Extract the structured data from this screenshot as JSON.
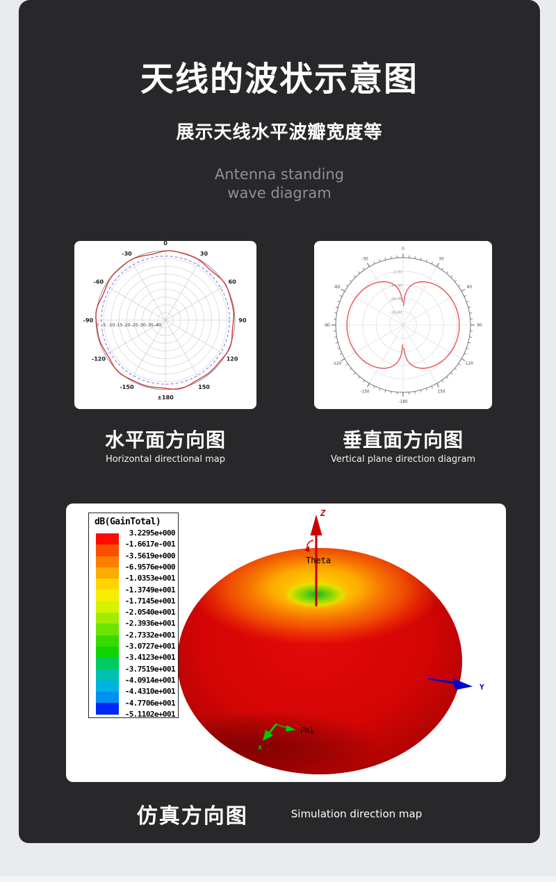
{
  "colors": {
    "page_bg": "#e9ebee",
    "card_bg": "#28282a",
    "panel_bg": "#ffffff",
    "title_text": "#ffffff",
    "muted_en_text": "#8f9093"
  },
  "header": {
    "title": "天线的波状示意图",
    "subtitle": "展示天线水平波瓣宽度等",
    "en_line1": "Antenna standing",
    "en_line2": "wave diagram"
  },
  "captions": {
    "horizontal_zh": "水平面方向图",
    "horizontal_en": "Horizontal directional map",
    "vertical_zh": "垂直面方向图",
    "vertical_en": "Vertical plane direction diagram",
    "simulation_zh": "仿真方向图",
    "simulation_en": "Simulation direction map"
  },
  "chart_data": [
    {
      "id": "horizontal-plane-pattern",
      "type": "polar",
      "description": "Horizontal plane radiation pattern: red measured gain curve nearly omnidirectional close to 0 dB at outer edge; blue dashed reference circle at about -3.5 dB",
      "angle_ticks_deg": [
        0,
        30,
        60,
        90,
        120,
        150,
        180,
        -150,
        -120,
        -90,
        -60,
        -30
      ],
      "angle_tick_labels": [
        "0",
        "30",
        "60",
        "90",
        "120",
        "150",
        "±180",
        "-150",
        "-120",
        "-90",
        "-60",
        "-30"
      ],
      "radial_tick_labels": [
        "0",
        "-5",
        "-10",
        "-15",
        "-20",
        "-25",
        "-30",
        "-35",
        "-40"
      ],
      "radial_range_db": [
        -45,
        0
      ],
      "grid": true,
      "series": [
        {
          "name": "measured gain",
          "color": "#d03838",
          "line_style": "solid",
          "db_vs_azimuth": "approx -0.5 dB (±0.8 dB ripple) at all azimuths"
        },
        {
          "name": "reference circle",
          "color": "#7d7de0",
          "line_style": "dashed",
          "db_vs_azimuth": "-3.5 dB constant"
        }
      ]
    },
    {
      "id": "vertical-plane-pattern",
      "type": "polar",
      "description": "Vertical plane radiation pattern: dipole-like figure-eight, lobes at ±90°, deep narrow nulls at 0° and 180°",
      "angle_ticks_deg": [
        0,
        30,
        60,
        90,
        120,
        150,
        180,
        210,
        240,
        270,
        300,
        330
      ],
      "angle_tick_labels": [
        "0",
        "30",
        "60",
        "90",
        "120",
        "150",
        "-180",
        "-150",
        "-120",
        "-90",
        "-60",
        "-30"
      ],
      "minor_tick_step_deg": 5,
      "radial_tick_labels": [
        "-2.00",
        "-14.00",
        "-26.00",
        "-38.00"
      ],
      "grid": true,
      "series": [
        {
          "name": "gain",
          "color": "#e54747",
          "line_style": "solid",
          "theta_deg": [
            5,
            15,
            30,
            45,
            60,
            75,
            90,
            105,
            120,
            135,
            150,
            165,
            175
          ],
          "db": [
            -21.2,
            -11.7,
            -6.0,
            -3.0,
            -1.2,
            -0.3,
            0.0,
            -0.3,
            -1.2,
            -3.0,
            -6.0,
            -11.7,
            -21.2
          ]
        }
      ]
    },
    {
      "id": "simulation-3d-pattern",
      "type": "surface3d",
      "quantity": "dB(GainTotal)",
      "colorbar_values": [
        "3.2295e+000",
        "-1.6617e-001",
        "-3.5619e+000",
        "-6.9576e+000",
        "-1.0353e+001",
        "-1.3749e+001",
        "-1.7145e+001",
        "-2.0540e+001",
        "-2.3936e+001",
        "-2.7332e+001",
        "-3.0727e+001",
        "-3.4123e+001",
        "-3.7519e+001",
        "-4.0914e+001",
        "-4.4310e+001",
        "-4.7706e+001",
        "-5.1102e+001"
      ],
      "colorbar_colors": [
        "#fb0b00",
        "#fb4f00",
        "#fb7e00",
        "#fcab00",
        "#fdd500",
        "#f5ee00",
        "#d5f300",
        "#a3ec00",
        "#6ce400",
        "#38da00",
        "#0fd400",
        "#00cb60",
        "#00c2b0",
        "#00b2e2",
        "#0090f0",
        "#0026fa"
      ],
      "max_db": 3.2295,
      "min_db": -51.102,
      "axis_labels": {
        "z": "Z",
        "theta": "Theta",
        "y": "Y",
        "x": "x",
        "phi": "Phi"
      },
      "description": "Red sphere-like 3D total-gain pattern with yellow/green null dimple at +Z pole; Z axis red arrow up, Y axis blue arrow right, x/Phi green arrows lower left"
    }
  ]
}
